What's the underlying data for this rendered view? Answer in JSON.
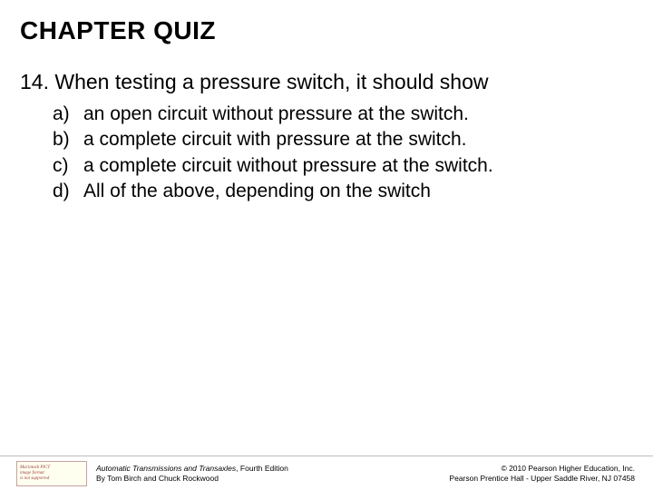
{
  "title": "CHAPTER QUIZ",
  "question": {
    "number": "14.",
    "text": "When testing a pressure switch, it should show"
  },
  "options": [
    {
      "letter": "a)",
      "text": "an open circuit without pressure at the switch."
    },
    {
      "letter": "b)",
      "text": "a complete circuit with pressure at the switch."
    },
    {
      "letter": "c)",
      "text": "a complete circuit without pressure at the switch."
    },
    {
      "letter": "d)",
      "text": "All of the above, depending on the switch"
    }
  ],
  "footer": {
    "icon": {
      "line1": "Macintosh PICT",
      "line2": "image format",
      "line3": "is not supported"
    },
    "left": {
      "book_title": "Automatic Transmissions and Transaxles",
      "edition": ", Fourth Edition",
      "authors": "By Tom Birch and Chuck Rockwood"
    },
    "right": {
      "line1": "© 2010 Pearson Higher Education, Inc.",
      "line2": "Pearson Prentice Hall - Upper Saddle River, NJ 07458"
    }
  },
  "colors": {
    "background": "#ffffff",
    "text": "#000000",
    "footer_border": "#bdbdbd",
    "icon_border": "#c8a0a0",
    "icon_bg": "#fffff0",
    "icon_text": "#a04040"
  }
}
